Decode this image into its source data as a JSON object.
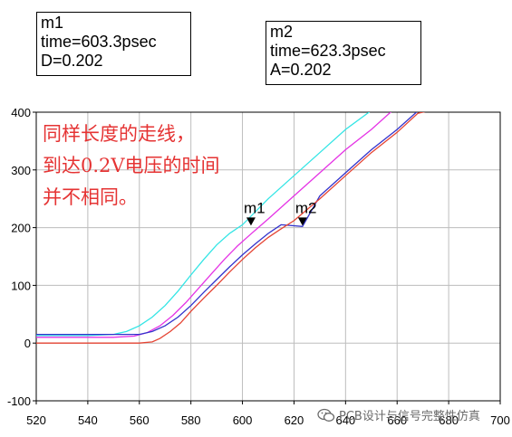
{
  "chart_data": {
    "type": "line",
    "x_ticks": [
      "520",
      "540",
      "560",
      "580",
      "600",
      "620",
      "640",
      "660",
      "680",
      "700"
    ],
    "y_ticks": [
      "400",
      "300",
      "200",
      "100",
      "0",
      "-100"
    ],
    "xlim": [
      520,
      700
    ],
    "ylim": [
      -100,
      400
    ],
    "grid": true,
    "series": [
      {
        "color": "#33e5e5",
        "points": [
          [
            520,
            13
          ],
          [
            540,
            13
          ],
          [
            550,
            15
          ],
          [
            555,
            20
          ],
          [
            560,
            30
          ],
          [
            565,
            45
          ],
          [
            570,
            65
          ],
          [
            575,
            90
          ],
          [
            580,
            118
          ],
          [
            585,
            145
          ],
          [
            590,
            170
          ],
          [
            595,
            190
          ],
          [
            600,
            205
          ],
          [
            610,
            250
          ],
          [
            620,
            290
          ],
          [
            630,
            330
          ],
          [
            640,
            370
          ],
          [
            650,
            403
          ]
        ]
      },
      {
        "color": "#e533e5",
        "points": [
          [
            520,
            10
          ],
          [
            550,
            10
          ],
          [
            558,
            12
          ],
          [
            563,
            18
          ],
          [
            568,
            30
          ],
          [
            573,
            48
          ],
          [
            578,
            70
          ],
          [
            583,
            95
          ],
          [
            588,
            120
          ],
          [
            593,
            145
          ],
          [
            598,
            168
          ],
          [
            603,
            188
          ],
          [
            610,
            215
          ],
          [
            620,
            255
          ],
          [
            630,
            295
          ],
          [
            640,
            335
          ],
          [
            650,
            370
          ],
          [
            658,
            402
          ]
        ]
      },
      {
        "color": "#3333cc",
        "points": [
          [
            520,
            15
          ],
          [
            553,
            15
          ],
          [
            560,
            15
          ],
          [
            565,
            20
          ],
          [
            570,
            30
          ],
          [
            575,
            45
          ],
          [
            580,
            65
          ],
          [
            585,
            88
          ],
          [
            590,
            110
          ],
          [
            595,
            132
          ],
          [
            600,
            153
          ],
          [
            605,
            172
          ],
          [
            610,
            190
          ],
          [
            615,
            205
          ],
          [
            623.3,
            202
          ],
          [
            630,
            255
          ],
          [
            640,
            295
          ],
          [
            650,
            335
          ],
          [
            660,
            370
          ],
          [
            668,
            402
          ]
        ]
      },
      {
        "color": "#e54433",
        "points": [
          [
            520,
            0
          ],
          [
            560,
            0
          ],
          [
            565,
            2
          ],
          [
            568,
            8
          ],
          [
            572,
            20
          ],
          [
            576,
            35
          ],
          [
            580,
            55
          ],
          [
            585,
            78
          ],
          [
            590,
            100
          ],
          [
            595,
            123
          ],
          [
            600,
            145
          ],
          [
            605,
            165
          ],
          [
            610,
            183
          ],
          [
            615,
            198
          ],
          [
            620,
            212
          ],
          [
            630,
            250
          ],
          [
            640,
            290
          ],
          [
            650,
            330
          ],
          [
            660,
            365
          ],
          [
            668,
            398
          ],
          [
            672,
            402
          ]
        ]
      }
    ],
    "markers": [
      {
        "label": "m1",
        "x": 603.3,
        "y": 202
      },
      {
        "label": "m2",
        "x": 623.3,
        "y": 202
      }
    ]
  },
  "readouts": {
    "m1": {
      "name": "m1",
      "line1": "time=603.3psec",
      "line2": "D=0.202"
    },
    "m2": {
      "name": "m2",
      "line1": "time=623.3psec",
      "line2": "A=0.202"
    }
  },
  "annotation": {
    "line1": "同样长度的走线，",
    "line2": "到达0.2V电压的时间",
    "line3": "并不相同。"
  },
  "watermark": {
    "text": "PCB设计与信号完整性仿真",
    "icon": "wechat-logo-icon"
  }
}
